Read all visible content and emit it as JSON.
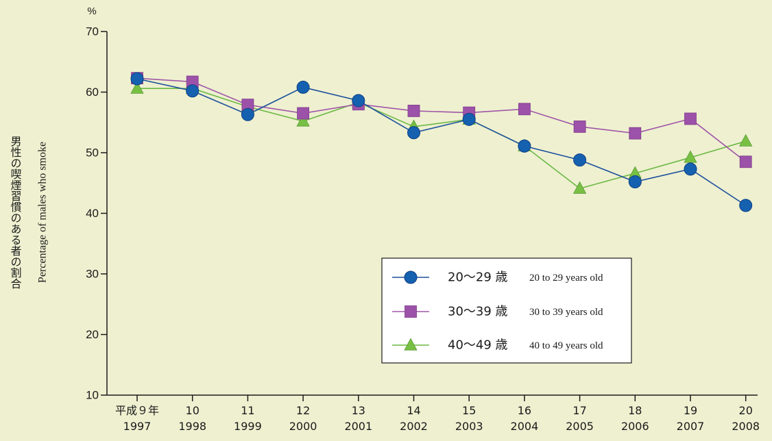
{
  "chart_data": {
    "type": "line",
    "unit": "%",
    "ylabel_jp": "男性の喫煙習慣のある者の割合",
    "ylabel_en": "Percentage of males who smoke",
    "ylim": [
      10,
      70
    ],
    "yticks": [
      10,
      20,
      30,
      40,
      50,
      60,
      70
    ],
    "grid": false,
    "legend_position": "center-right",
    "x_top": [
      "平成９年",
      "10",
      "11",
      "12",
      "13",
      "14",
      "15",
      "16",
      "17",
      "18",
      "19",
      "20"
    ],
    "x_bottom": [
      "1997",
      "1998",
      "1999",
      "2000",
      "2001",
      "2002",
      "2003",
      "2004",
      "2005",
      "2006",
      "2007",
      "2008"
    ],
    "series": [
      {
        "label_jp": "20〜29 歳",
        "label_en": "20 to 29 years old",
        "marker": "circle",
        "line_color": "#1b4f9c",
        "marker_color": "#1561b0",
        "values": [
          62.2,
          60.2,
          56.3,
          60.8,
          58.6,
          53.3,
          55.5,
          51.1,
          48.8,
          45.2,
          47.3,
          41.3
        ]
      },
      {
        "label_jp": "30〜39 歳",
        "label_en": "30 to 39 years old",
        "marker": "square",
        "line_color": "#a056a8",
        "marker_color": "#9c52a8",
        "values": [
          62.3,
          61.7,
          57.9,
          56.5,
          58.0,
          56.9,
          56.6,
          57.2,
          54.3,
          53.2,
          55.6,
          48.5
        ]
      },
      {
        "label_jp": "40〜49 歳",
        "label_en": "40 to 49 years old",
        "marker": "triangle",
        "line_color": "#6cb844",
        "marker_color": "#78c043",
        "values": [
          60.6,
          60.6,
          57.6,
          55.2,
          58.3,
          54.3,
          55.5,
          51.1,
          44.1,
          46.6,
          49.2,
          51.9
        ]
      }
    ]
  }
}
